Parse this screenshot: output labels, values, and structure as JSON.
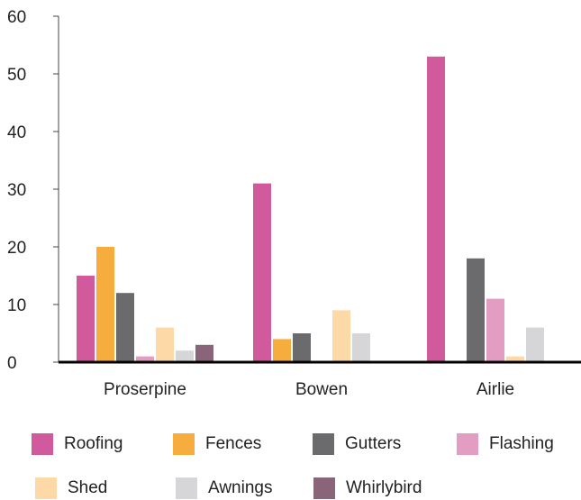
{
  "chart_data": {
    "type": "bar",
    "categories": [
      "Proserpine",
      "Bowen",
      "Airlie"
    ],
    "series": [
      {
        "name": "Roofing",
        "color": "#d05a9b",
        "values": [
          15,
          31,
          53
        ]
      },
      {
        "name": "Fences",
        "color": "#f7ac3e",
        "values": [
          20,
          4,
          0
        ]
      },
      {
        "name": "Gutters",
        "color": "#6b6b6e",
        "values": [
          12,
          5,
          18
        ]
      },
      {
        "name": "Flashing",
        "color": "#e39dc3",
        "values": [
          1,
          0,
          11
        ]
      },
      {
        "name": "Shed",
        "color": "#fcd9a6",
        "values": [
          6,
          9,
          1
        ]
      },
      {
        "name": "Awnings",
        "color": "#d6d6d8",
        "values": [
          2,
          5,
          6
        ]
      },
      {
        "name": "Whirlybird",
        "color": "#8a6478",
        "values": [
          3,
          0,
          0
        ]
      }
    ],
    "ylim": [
      0,
      60
    ],
    "yticks": [
      0,
      10,
      20,
      30,
      40,
      50,
      60
    ],
    "grid": false,
    "legend_position": "bottom"
  }
}
